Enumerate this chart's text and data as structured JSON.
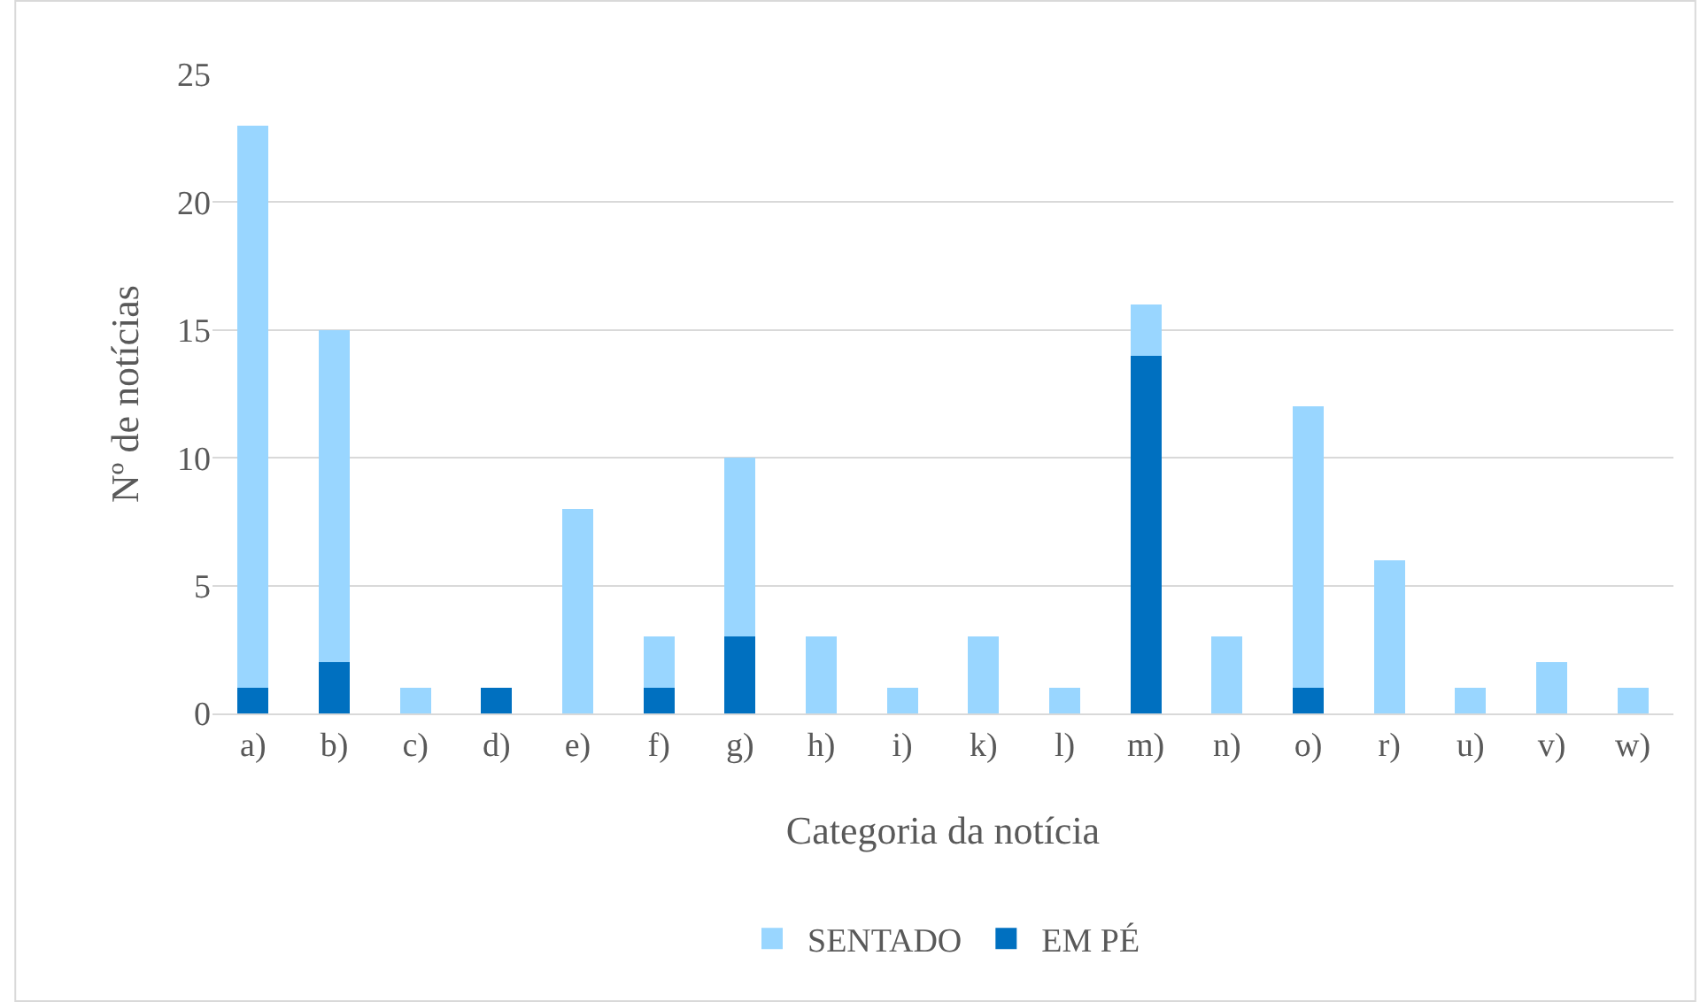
{
  "chart_data": {
    "type": "bar",
    "stacked": true,
    "xlabel": "Categoria da notícia",
    "ylabel": "Nº de notícias",
    "categories": [
      "a)",
      "b)",
      "c)",
      "d)",
      "e)",
      "f)",
      "g)",
      "h)",
      "i)",
      "k)",
      "l)",
      "m)",
      "n)",
      "o)",
      "r)",
      "u)",
      "v)",
      "w)"
    ],
    "series": [
      {
        "name": "EM PÉ",
        "color": "#0070c0",
        "values": [
          1,
          2,
          0,
          1,
          0,
          1,
          3,
          0,
          0,
          0,
          0,
          14,
          0,
          1,
          0,
          0,
          0,
          0
        ]
      },
      {
        "name": "SENTADO",
        "color": "#99d6ff",
        "values": [
          22,
          13,
          1,
          0,
          8,
          2,
          7,
          3,
          1,
          3,
          1,
          2,
          3,
          11,
          6,
          1,
          2,
          1
        ]
      }
    ],
    "ylim": [
      0,
      25
    ],
    "yticks": [
      0,
      5,
      10,
      15,
      20,
      25
    ],
    "grid": "y",
    "legend": "bottom"
  }
}
